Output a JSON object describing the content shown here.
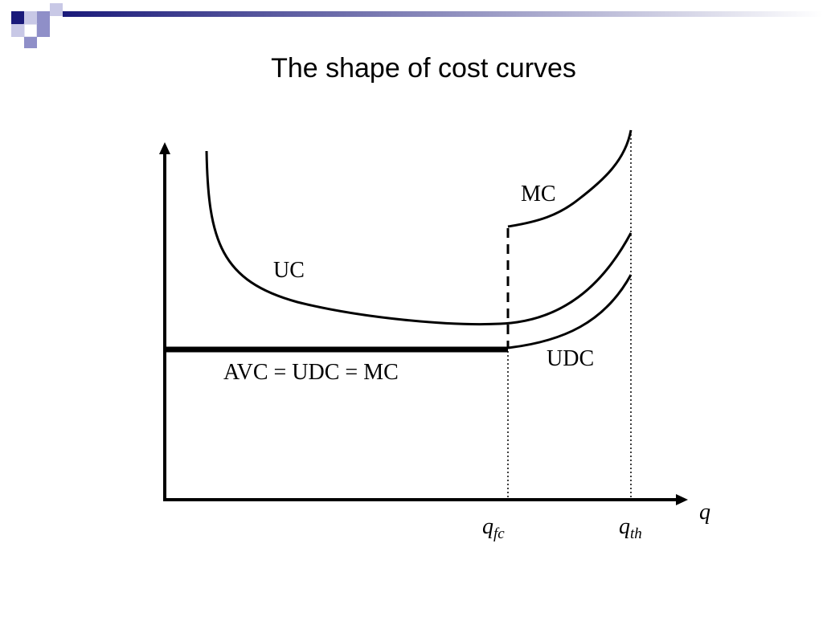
{
  "header": {
    "title": "The shape of cost curves"
  },
  "diagram": {
    "curve_labels": {
      "mc": "MC",
      "uc": "UC",
      "udc": "UDC",
      "flat": "AVC = UDC = MC"
    },
    "axis": {
      "x": "q"
    },
    "x_points": [
      {
        "main": "q",
        "sub": "fc"
      },
      {
        "main": "q",
        "sub": "th"
      }
    ]
  }
}
